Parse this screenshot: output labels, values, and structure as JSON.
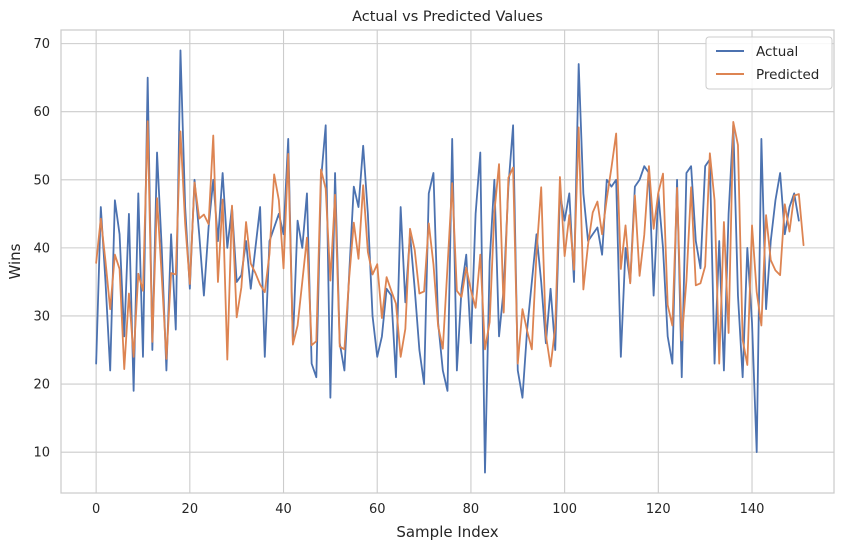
{
  "chart_data": {
    "type": "line",
    "title": "Actual vs Predicted Values",
    "xlabel": "Sample Index",
    "ylabel": "Wins",
    "xlim": [
      -7.5,
      157.5
    ],
    "ylim": [
      4,
      72
    ],
    "xticks": [
      0,
      20,
      40,
      60,
      80,
      100,
      120,
      140
    ],
    "yticks": [
      10,
      20,
      30,
      40,
      50,
      60,
      70
    ],
    "grid": true,
    "legend_position": "top-right",
    "series": [
      {
        "name": "Actual",
        "color": "#4c72b0",
        "values": [
          23,
          46,
          35,
          22,
          47,
          42,
          27,
          45,
          19,
          48,
          24,
          65,
          25,
          54,
          40,
          22,
          42,
          28,
          69,
          46,
          34,
          50,
          42,
          33,
          43,
          50,
          41,
          51,
          40,
          46,
          35,
          36,
          41,
          34,
          40,
          46,
          24,
          41,
          43,
          45,
          42,
          56,
          26,
          44,
          40,
          48,
          23,
          21,
          50,
          58,
          18,
          51,
          26,
          22,
          36,
          49,
          46,
          55,
          45,
          30,
          24,
          27,
          34,
          33,
          21,
          46,
          32,
          42,
          34,
          25,
          20,
          48,
          51,
          29,
          22,
          19,
          56,
          22,
          34,
          39,
          26,
          45,
          54,
          7,
          38,
          50,
          27,
          34,
          49,
          58,
          22,
          18,
          28,
          35,
          42,
          35,
          26,
          34,
          25,
          48,
          44,
          48,
          35,
          67,
          48,
          41,
          42,
          43,
          39,
          50,
          49,
          50,
          24,
          40,
          35,
          49,
          50,
          52,
          51,
          33,
          48,
          40,
          27,
          23,
          50,
          21,
          51,
          52,
          41,
          37,
          52,
          53,
          23,
          41,
          22,
          45,
          58,
          33,
          21,
          40,
          29,
          10,
          56,
          31,
          41,
          47,
          51,
          42,
          46,
          48,
          44
        ]
      },
      {
        "name": "Predicted",
        "color": "#dd8452",
        "values": [
          37.8,
          44.3,
          38,
          31,
          39,
          36.9,
          22.2,
          33.3,
          24,
          36.2,
          33.7,
          58.6,
          26.2,
          47.3,
          35.9,
          23.7,
          36.3,
          36.1,
          57.1,
          43.6,
          34.7,
          49.6,
          44.3,
          44.9,
          43.5,
          56.5,
          35,
          47.1,
          23.6,
          46.2,
          29.8,
          34.2,
          43.8,
          37.7,
          36.3,
          34.6,
          33.5,
          39.1,
          50.8,
          47,
          37,
          53.8,
          25.8,
          28.6,
          35,
          41.5,
          25.7,
          26.3,
          51.5,
          48.7,
          35.2,
          47.8,
          25.5,
          25.1,
          35.5,
          43.7,
          38.4,
          49.2,
          39.4,
          36.1,
          37.6,
          29.7,
          35.7,
          33.7,
          31.8,
          24,
          28.1,
          42.8,
          39.7,
          33.3,
          33.6,
          43.6,
          37.6,
          28.5,
          25.2,
          37.2,
          49.5,
          33.7,
          32.8,
          37.1,
          33.8,
          31.2,
          39,
          25.1,
          29.1,
          45.2,
          52.3,
          30.5,
          50.3,
          51.8,
          23,
          31,
          27.8,
          25.1,
          39.2,
          48.9,
          27.2,
          22.6,
          28.4,
          50.4,
          38.8,
          44.8,
          36.8,
          57.7,
          33.9,
          40.5,
          45.2,
          46.8,
          42,
          47.2,
          51.8,
          56.8,
          36.9,
          43.3,
          34.8,
          47.7,
          35.9,
          41.9,
          52,
          42.8,
          48.1,
          50.9,
          31.6,
          28.6,
          48.8,
          26.4,
          35.2,
          48.9,
          34.5,
          34.8,
          37.3,
          53.9,
          47,
          23,
          43.8,
          27.5,
          58.5,
          55.1,
          26.5,
          22.8,
          43.3,
          33.5,
          28.6,
          44.8,
          38.2,
          36.7,
          36,
          46.4,
          42.4,
          47.7,
          47.9,
          40.4
        ]
      }
    ]
  }
}
